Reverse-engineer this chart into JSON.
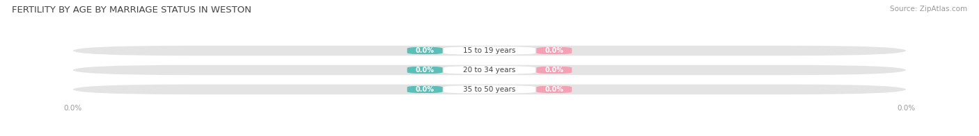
{
  "title": "FERTILITY BY AGE BY MARRIAGE STATUS IN WESTON",
  "source": "Source: ZipAtlas.com",
  "age_groups": [
    "15 to 19 years",
    "20 to 34 years",
    "35 to 50 years"
  ],
  "married_values": [
    0.0,
    0.0,
    0.0
  ],
  "unmarried_values": [
    0.0,
    0.0,
    0.0
  ],
  "married_color": "#5BBFB8",
  "unmarried_color": "#F4A0B5",
  "bar_bg_color": "#E4E4E4",
  "center_label_color": "#ffffff",
  "title_fontsize": 9.5,
  "value_fontsize": 7.0,
  "label_fontsize": 7.5,
  "tick_fontsize": 7.5,
  "legend_fontsize": 8,
  "source_fontsize": 7.5,
  "title_color": "#444444",
  "axis_label_color": "#999999",
  "category_label_color": "#444444",
  "background_color": "#ffffff"
}
